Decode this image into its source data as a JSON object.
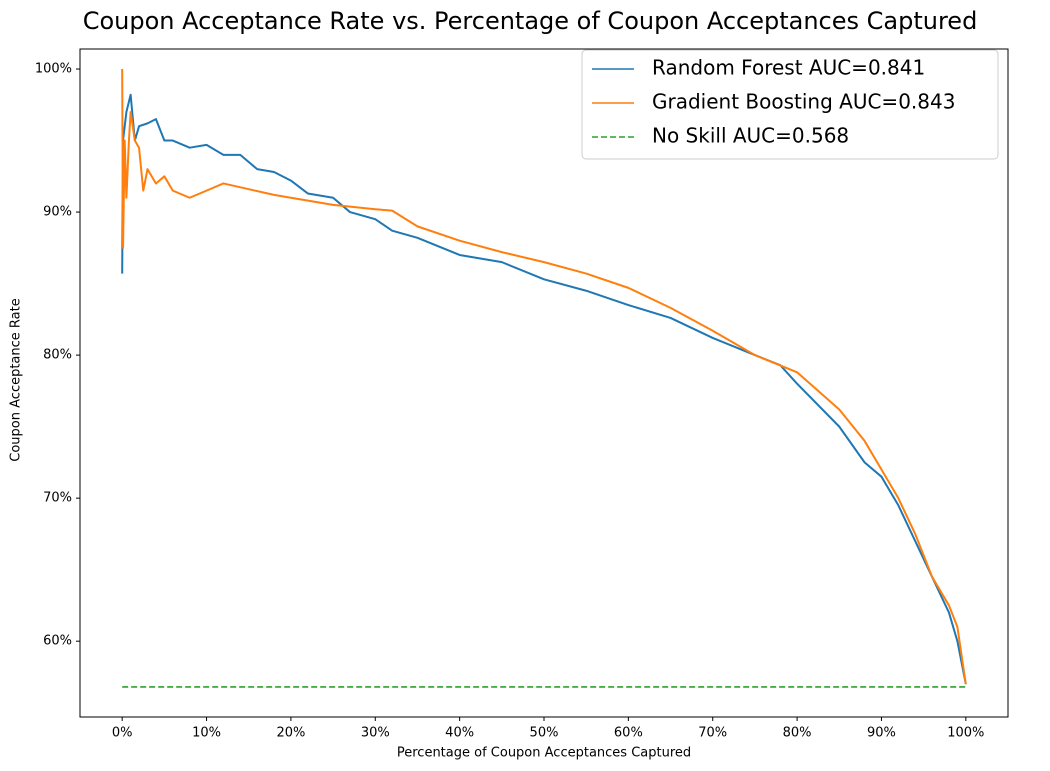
{
  "chart_data": {
    "type": "line",
    "title": "Coupon Acceptance Rate vs. Percentage of Coupon Acceptances Captured",
    "x_label": "Percentage of Coupon Acceptances Captured",
    "y_label": "Coupon Acceptance Rate",
    "xlim": [
      -5,
      105
    ],
    "ylim": [
      54.7,
      101.4
    ],
    "xticks": [
      {
        "value": 0,
        "label": "0%"
      },
      {
        "value": 10,
        "label": "10%"
      },
      {
        "value": 20,
        "label": "20%"
      },
      {
        "value": 30,
        "label": "30%"
      },
      {
        "value": 40,
        "label": "40%"
      },
      {
        "value": 50,
        "label": "50%"
      },
      {
        "value": 60,
        "label": "60%"
      },
      {
        "value": 70,
        "label": "70%"
      },
      {
        "value": 80,
        "label": "80%"
      },
      {
        "value": 90,
        "label": "90%"
      },
      {
        "value": 100,
        "label": "100%"
      }
    ],
    "yticks": [
      {
        "value": 60,
        "label": "60%"
      },
      {
        "value": 70,
        "label": "70%"
      },
      {
        "value": 80,
        "label": "80%"
      },
      {
        "value": 90,
        "label": "90%"
      },
      {
        "value": 100,
        "label": "100%"
      }
    ],
    "grid": false,
    "legend": "upper right",
    "series": [
      {
        "name": "Random Forest AUC=0.841",
        "color": "#1f77b4",
        "line_style": "solid",
        "x": [
          0,
          0.1,
          0.5,
          1,
          1.5,
          2,
          3,
          4,
          5,
          6,
          8,
          10,
          12,
          14,
          16,
          18,
          20,
          22,
          25,
          27,
          30,
          32,
          35,
          40,
          45,
          50,
          55,
          60,
          65,
          70,
          75,
          78,
          80,
          85,
          88,
          90,
          92,
          94,
          96,
          98,
          99,
          100
        ],
        "values": [
          85.7,
          95,
          97,
          98.2,
          95,
          96,
          96.2,
          96.5,
          95,
          95,
          94.5,
          94.7,
          94,
          94,
          93,
          92.8,
          92.2,
          91.3,
          91,
          90,
          89.5,
          88.7,
          88.2,
          87,
          86.5,
          85.3,
          84.5,
          83.5,
          82.6,
          81.2,
          80,
          79.3,
          78,
          75,
          72.5,
          71.5,
          69.5,
          67,
          64.5,
          62,
          60,
          57
        ]
      },
      {
        "name": "Gradient Boosting AUC=0.843",
        "color": "#ff7f0e",
        "line_style": "solid",
        "x": [
          0,
          0.1,
          0.3,
          0.5,
          0.8,
          1,
          1.5,
          2,
          2.5,
          3,
          4,
          5,
          6,
          8,
          10,
          12,
          15,
          18,
          20,
          25,
          30,
          32,
          35,
          40,
          45,
          50,
          55,
          60,
          65,
          70,
          75,
          80,
          85,
          88,
          90,
          92,
          94,
          96,
          98,
          99,
          100
        ],
        "values": [
          100,
          87.5,
          95,
          91,
          95,
          97,
          95,
          94.5,
          91.5,
          93,
          92,
          92.5,
          91.5,
          91,
          91.5,
          92,
          91.6,
          91.2,
          91,
          90.5,
          90.2,
          90.1,
          89,
          88,
          87.2,
          86.5,
          85.7,
          84.7,
          83.3,
          81.7,
          80,
          78.8,
          76.2,
          74,
          72,
          70,
          67.5,
          64.5,
          62.5,
          61,
          57
        ]
      },
      {
        "name": "No Skill AUC=0.568",
        "color": "#2ca02c",
        "line_style": "dashed",
        "x": [
          0,
          100
        ],
        "values": [
          56.8,
          56.8
        ]
      }
    ]
  }
}
